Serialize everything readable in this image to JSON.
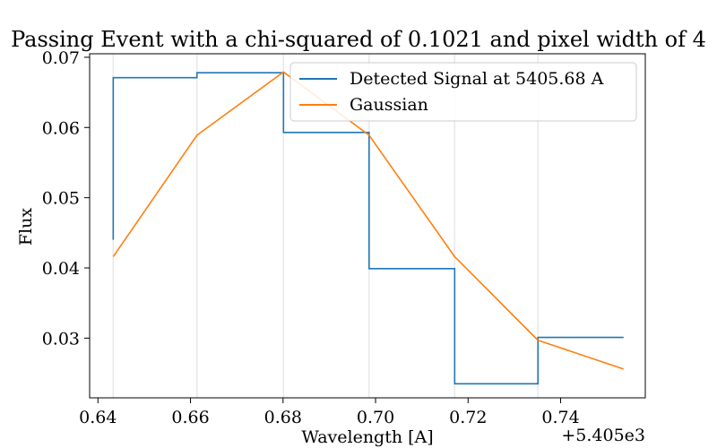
{
  "chart_data": {
    "type": "line",
    "title": "Passing Event with a chi-squared of 0.1021 and pixel width of 4",
    "xlabel": "Wavelength [A]",
    "ylabel": "Flux",
    "x_offset_label": "+5.405e3",
    "xlim": [
      0.6382,
      0.7583
    ],
    "ylim": [
      0.0215,
      0.0705
    ],
    "xticks": [
      0.64,
      0.66,
      0.68,
      0.7,
      0.72,
      0.74
    ],
    "xtick_labels": [
      "0.64",
      "0.66",
      "0.68",
      "0.70",
      "0.72",
      "0.74"
    ],
    "yticks": [
      0.03,
      0.04,
      0.05,
      0.06,
      0.07
    ],
    "ytick_labels": [
      "0.03",
      "0.04",
      "0.05",
      "0.06",
      "0.07"
    ],
    "vlines": [
      0.6433,
      0.6614,
      0.6801,
      0.6986,
      0.7171,
      0.7351
    ],
    "grid": false,
    "legend_position": "top-right",
    "series": [
      {
        "name": "Detected Signal at 5405.68 A",
        "style": "step-post",
        "color": "#1f77b4",
        "x": [
          0.6433,
          0.6433,
          0.6614,
          0.6801,
          0.6986,
          0.7171,
          0.7351,
          0.7536
        ],
        "y": [
          0.044,
          0.0671,
          0.0678,
          0.0593,
          0.0399,
          0.0235,
          0.0301,
          0.0301
        ]
      },
      {
        "name": "Gaussian",
        "style": "line",
        "color": "#ff7f0e",
        "x": [
          0.6433,
          0.6614,
          0.6801,
          0.6986,
          0.7171,
          0.7351,
          0.7536
        ],
        "y": [
          0.0416,
          0.0589,
          0.0679,
          0.0589,
          0.0416,
          0.0297,
          0.0256
        ]
      }
    ]
  },
  "colors": {
    "vline": "#e8e8e8",
    "axes": "#000000"
  }
}
